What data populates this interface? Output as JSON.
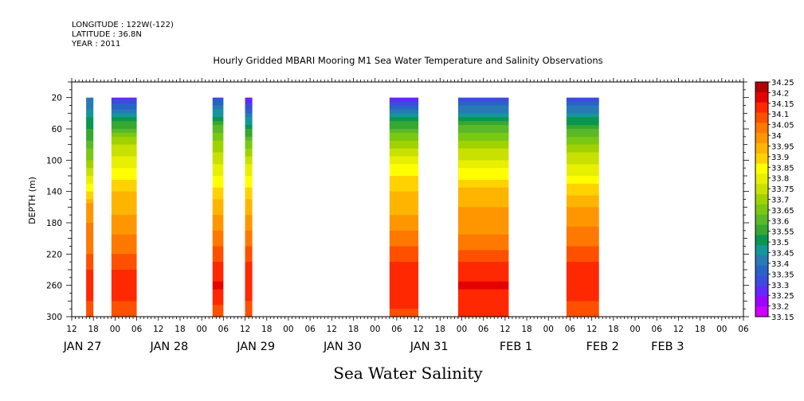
{
  "chart_data": {
    "type": "heatmap",
    "header_lines": [
      "LONGITUDE : 122W(-122)",
      "LATITUDE : 36.8N",
      "YEAR : 2011"
    ],
    "title": "Hourly Gridded MBARI Mooring M1 Sea Water Temperature and Salinity Observations",
    "ylabel": "DEPTH (m)",
    "xlabel": "Sea Water Salinity",
    "ylim": [
      300,
      0
    ],
    "y_ticks": [
      20,
      60,
      100,
      140,
      180,
      220,
      260,
      300
    ],
    "x_range_hours": [
      0,
      186
    ],
    "x_tick_labels": [
      "12",
      "18",
      "00",
      "06",
      "12",
      "18",
      "00",
      "06",
      "12",
      "18",
      "00",
      "06",
      "12",
      "18",
      "00",
      "06",
      "12",
      "18",
      "00",
      "06",
      "12",
      "18",
      "00",
      "06",
      "12",
      "18",
      "00",
      "06",
      "12",
      "18",
      "00",
      "06"
    ],
    "x_tick_hours": [
      0,
      6,
      12,
      18,
      24,
      30,
      36,
      42,
      48,
      54,
      60,
      66,
      72,
      78,
      84,
      90,
      96,
      102,
      108,
      114,
      120,
      126,
      132,
      138,
      144,
      150,
      156,
      162,
      168,
      174,
      180,
      186
    ],
    "date_labels": [
      {
        "label": "JAN 27",
        "hour": 3
      },
      {
        "label": "JAN 28",
        "hour": 27
      },
      {
        "label": "JAN 29",
        "hour": 51
      },
      {
        "label": "JAN 30",
        "hour": 75
      },
      {
        "label": "JAN 31",
        "hour": 99
      },
      {
        "label": "FEB  1",
        "hour": 123
      },
      {
        "label": "FEB  2",
        "hour": 147
      },
      {
        "label": "FEB  3",
        "hour": 165
      }
    ],
    "colorbar": {
      "levels": [
        33.15,
        33.2,
        33.25,
        33.3,
        33.35,
        33.4,
        33.45,
        33.5,
        33.55,
        33.6,
        33.65,
        33.7,
        33.75,
        33.8,
        33.85,
        33.9,
        33.95,
        34,
        34.05,
        34.1,
        34.15,
        34.2,
        34.25
      ],
      "labels": [
        "34.25",
        "34.2",
        "34.15",
        "34.1",
        "34.05",
        "34",
        "33.95",
        "33.9",
        "33.85",
        "33.8",
        "33.75",
        "33.7",
        "33.65",
        "33.6",
        "33.55",
        "33.5",
        "33.45",
        "33.4",
        "33.35",
        "33.3",
        "33.25",
        "33.2",
        "33.15"
      ],
      "colors": [
        "#cc00ff",
        "#a000ff",
        "#6428ff",
        "#3c4cdc",
        "#2864c8",
        "#287ab4",
        "#14969b",
        "#0a9650",
        "#36a832",
        "#5ab928",
        "#78c814",
        "#a0d200",
        "#c8e100",
        "#e6f000",
        "#ffff00",
        "#ffd200",
        "#ffb400",
        "#ff9600",
        "#ff7800",
        "#ff5000",
        "#ff2800",
        "#e60000",
        "#b40000"
      ]
    },
    "profile_depths": [
      20,
      40,
      60,
      80,
      100,
      120,
      140,
      160,
      180,
      200,
      220,
      240,
      260,
      280,
      300
    ],
    "columns": [
      {
        "x_start": 4,
        "x_end": 6,
        "values": [
          33.4,
          33.48,
          33.55,
          33.62,
          33.7,
          33.8,
          33.9,
          34.02,
          34.05,
          34.08,
          34.1,
          34.15,
          34.2,
          34.15,
          34.1
        ]
      },
      {
        "x_start": 11,
        "x_end": 18,
        "values": [
          33.28,
          33.45,
          33.62,
          33.75,
          33.82,
          33.88,
          33.95,
          33.98,
          34.02,
          34.06,
          34.1,
          34.15,
          34.2,
          34.15,
          34.12
        ]
      },
      {
        "x_start": 39,
        "x_end": 42,
        "values": [
          33.32,
          33.48,
          33.62,
          33.72,
          33.78,
          33.85,
          33.92,
          33.97,
          34.03,
          34.07,
          34.12,
          34.17,
          34.21,
          34.16,
          34.1
        ]
      },
      {
        "x_start": 48,
        "x_end": 50,
        "values": [
          33.25,
          33.4,
          33.55,
          33.68,
          33.78,
          33.85,
          33.92,
          33.97,
          34.03,
          34.07,
          34.12,
          34.17,
          34.2,
          34.15,
          34.1
        ]
      },
      {
        "x_start": 88,
        "x_end": 96,
        "values": [
          33.25,
          33.45,
          33.62,
          33.73,
          33.82,
          33.9,
          33.95,
          33.98,
          34.03,
          34.07,
          34.12,
          34.17,
          34.2,
          34.17,
          34.12
        ]
      },
      {
        "x_start": 107,
        "x_end": 121,
        "values": [
          33.3,
          33.47,
          33.62,
          33.73,
          33.8,
          33.88,
          33.96,
          34.0,
          34.03,
          34.06,
          34.12,
          34.18,
          34.21,
          34.18,
          34.15
        ]
      },
      {
        "x_start": 137,
        "x_end": 146,
        "values": [
          33.32,
          33.45,
          33.6,
          33.7,
          33.78,
          33.85,
          33.93,
          34.0,
          34.04,
          34.08,
          34.12,
          34.17,
          34.2,
          34.15,
          34.12
        ]
      }
    ]
  }
}
